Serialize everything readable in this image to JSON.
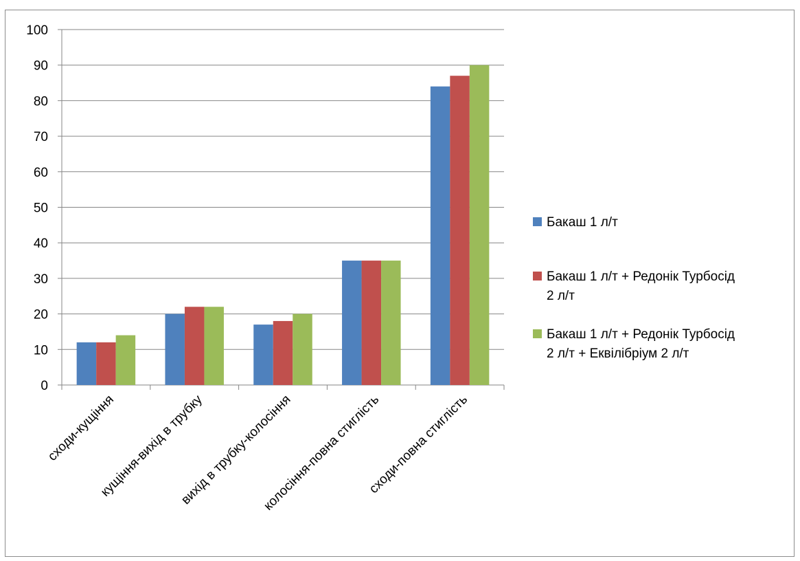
{
  "chart_data": {
    "type": "bar",
    "categories": [
      "сходи-кущіння",
      "кущіння-вихід в трубку",
      "вихід в трубку-колосіння",
      "колосіння-повна стиглість",
      "сходи-повна стиглість"
    ],
    "series": [
      {
        "name": "Бакаш 1 л/т",
        "legend_lines": [
          "Бакаш 1 л/т"
        ],
        "color": "#4f81bd",
        "values": [
          12,
          20,
          17,
          35,
          84
        ]
      },
      {
        "name": "Бакаш 1 л/т + Редонік Турбосід 2 л/т",
        "legend_lines": [
          "Бакаш 1 л/т + Редонік Турбосід",
          "2 л/т"
        ],
        "color": "#c0504d",
        "values": [
          12,
          22,
          18,
          35,
          87
        ]
      },
      {
        "name": "Бакаш 1 л/т + Редонік Турбосід 2 л/т + Еквілібріум 2 л/т",
        "legend_lines": [
          "Бакаш 1 л/т + Редонік Турбосід",
          "2 л/т + Еквілібріум 2 л/т"
        ],
        "color": "#9bbb59",
        "values": [
          14,
          22,
          20,
          35,
          90
        ]
      }
    ],
    "ylim": [
      0,
      100
    ],
    "yticks": [
      "0",
      "10",
      "20",
      "30",
      "40",
      "50",
      "60",
      "70",
      "80",
      "90",
      "100"
    ],
    "grid": true,
    "legend_position": "right"
  }
}
